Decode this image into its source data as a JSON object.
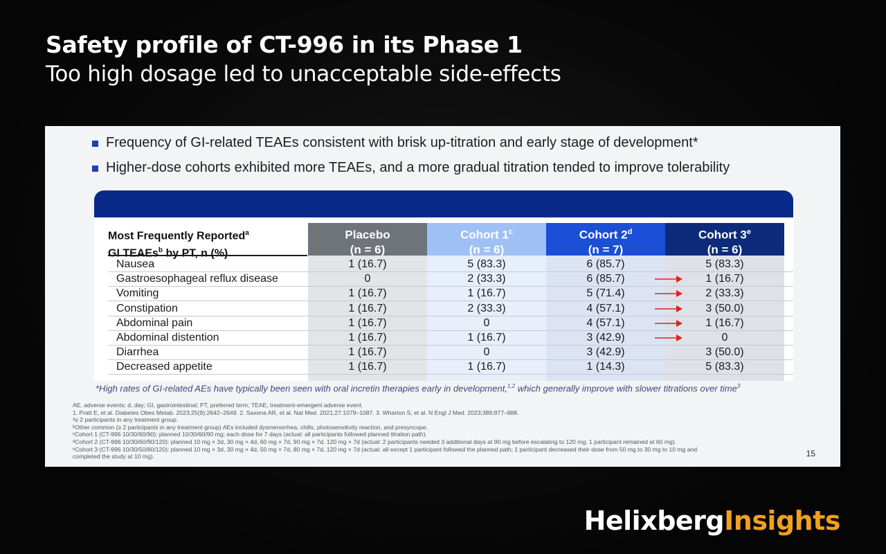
{
  "heading": {
    "line1": "Safety profile of CT-996 in its Phase 1",
    "line2": "Too high dosage led to unacceptable side-effects"
  },
  "slide": {
    "bullets": [
      "Frequency of GI-related TEAEs consistent with brisk up-titration and early stage of development*",
      "Higher-dose cohorts exhibited more TEAEs, and a more gradual titration tended to improve tolerability"
    ],
    "table": {
      "first_header_line1": "Most Frequently Reported",
      "first_header_line1_sup": "a",
      "first_header_line2a": "GI TEAEs",
      "first_header_line2_sup": "b",
      "first_header_line2b": " by PT, n (%)",
      "columns": [
        {
          "name": "Placebo",
          "sup": "",
          "n": "(n = 6)",
          "bg": "#6f737a",
          "cell_bg": "#e3e4e7"
        },
        {
          "name": "Cohort 1",
          "sup": "c",
          "n": "(n = 6)",
          "bg": "#9fc0f5",
          "cell_bg": "#e7effb"
        },
        {
          "name": "Cohort 2",
          "sup": "d",
          "n": "(n = 7)",
          "bg": "#1a4fd6",
          "cell_bg": "#dce4f4"
        },
        {
          "name": "Cohort 3",
          "sup": "e",
          "n": "(n = 6)",
          "bg": "#0d2b7a",
          "cell_bg": "#dfe1e8"
        }
      ],
      "rows": [
        {
          "label": "Nausea",
          "values": [
            "1 (16.7)",
            "5 (83.3)",
            "6 (85.7)",
            "5 (83.3)"
          ],
          "arrow": false
        },
        {
          "label": "Gastroesophageal reflux disease",
          "values": [
            "0",
            "2 (33.3)",
            "6 (85.7)",
            "1 (16.7)"
          ],
          "arrow": true
        },
        {
          "label": "Vomiting",
          "values": [
            "1 (16.7)",
            "1 (16.7)",
            "5 (71.4)",
            "2 (33.3)"
          ],
          "arrow": true
        },
        {
          "label": "Constipation",
          "values": [
            "1 (16.7)",
            "2 (33.3)",
            "4 (57.1)",
            "3 (50.0)"
          ],
          "arrow": true
        },
        {
          "label": "Abdominal pain",
          "values": [
            "1 (16.7)",
            "0",
            "4 (57.1)",
            "1 (16.7)"
          ],
          "arrow": true
        },
        {
          "label": "Abdominal distention",
          "values": [
            "1 (16.7)",
            "1 (16.7)",
            "3 (42.9)",
            "0"
          ],
          "arrow": true
        },
        {
          "label": "Diarrhea",
          "values": [
            "1 (16.7)",
            "0",
            "3 (42.9)",
            "3 (50.0)"
          ],
          "arrow": false
        },
        {
          "label": "Decreased appetite",
          "values": [
            "1 (16.7)",
            "1 (16.7)",
            "1 (14.3)",
            "5 (83.3)"
          ],
          "arrow": false
        }
      ],
      "arrow_color": "#e02020"
    },
    "footnote_text": "*High rates of GI-related AEs have typically been seen with oral incretin therapies early in development,",
    "footnote_sup1": "1,2",
    "footnote_text2": " which generally improve with slower titrations over time",
    "footnote_sup2": "3",
    "references": [
      "AE, adverse events; d, day; GI, gastrointestinal; PT, preferred term; TEAE, treatment-emergent adverse event.",
      "1. Pratt E, et al. Diabetes Obes Metab. 2023;25(9):2642–2649. 2. Saxena AR, et al. Nat Med. 2021;27:1079–1087. 3. Wharton S, et al. N Engl J Med. 2023;389:877–888.",
      "ᵃ≥ 2 participants in any treatment group.",
      "ᵇOther common (≥ 2 participants in any treatment group) AEs included dysmenorrhea, chills, photosensitivity reaction, and presyncope.",
      "ᶜCohort 1 (CT-996 10/30/60/90): planned 10/30/60/90 mg; each dose for 7 days (actual: all participants followed planned titration path).",
      "ᵈCohort 2 (CT-996 10/30/60/90/120): planned 10 mg × 3d, 30 mg × 4d, 60 mg × 7d, 90 mg × 7d, 120 mg × 7d (actual: 2 participants needed 3 additional days at 90 mg before escalating to 120 mg; 1 participant remained at 60 mg).",
      "ᵉCohort 3 (CT-996 10/30/50/80/120): planned 10 mg × 3d, 30 mg × 4d, 50 mg × 7d, 80 mg × 7d, 120 mg × 7d (actual: all except 1 participant followed the planned path; 1 participant decreased their dose from 50 mg to 30 mg to 10 mg and",
      "completed the study at 10 mg)."
    ],
    "page_number": "15"
  },
  "brand": {
    "part1": "Helixberg",
    "part2": "Insights",
    "accent": "#f0a020"
  }
}
